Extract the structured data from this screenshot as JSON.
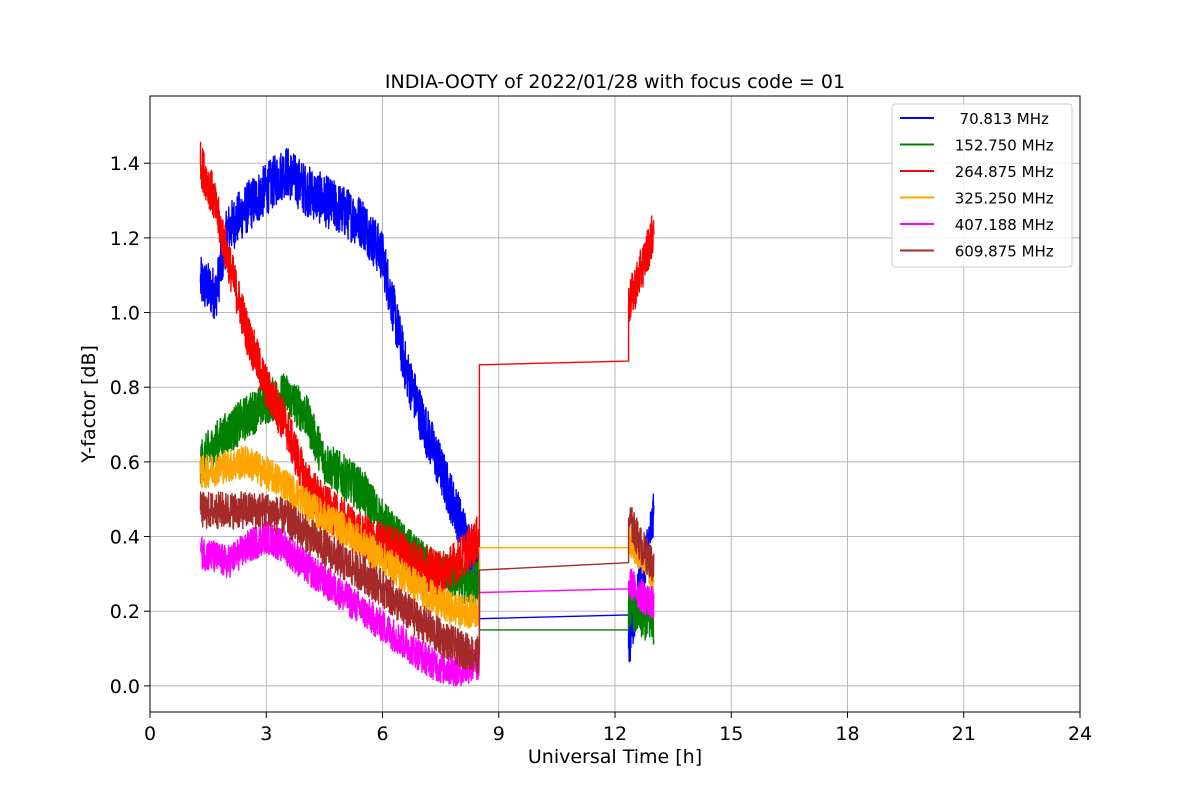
{
  "chart_data": {
    "type": "line",
    "title": "INDIA-OOTY of 2022/01/28 with focus code = 01",
    "xlabel": "Universal Time [h]",
    "ylabel": "Y-factor [dB]",
    "xlim": [
      0,
      24
    ],
    "ylim": [
      -0.07,
      1.58
    ],
    "xticks": [
      0,
      3,
      6,
      9,
      12,
      15,
      18,
      21,
      24
    ],
    "yticks": [
      0.0,
      0.2,
      0.4,
      0.6,
      0.8,
      1.0,
      1.2,
      1.4
    ],
    "grid": true,
    "legend_position": "top-right",
    "series": [
      {
        "name": "  70.813 MHz",
        "color": "#0000ff",
        "noise": 0.07,
        "points": [
          [
            1.3,
            1.08
          ],
          [
            1.7,
            1.05
          ],
          [
            2.0,
            1.22
          ],
          [
            2.5,
            1.28
          ],
          [
            3.0,
            1.33
          ],
          [
            3.5,
            1.38
          ],
          [
            4.0,
            1.33
          ],
          [
            4.5,
            1.3
          ],
          [
            5.0,
            1.27
          ],
          [
            5.5,
            1.24
          ],
          [
            6.0,
            1.15
          ],
          [
            6.3,
            1.0
          ],
          [
            6.6,
            0.85
          ],
          [
            7.0,
            0.72
          ],
          [
            7.5,
            0.58
          ],
          [
            8.0,
            0.44
          ],
          [
            8.5,
            0.3
          ],
          [
            8.5,
            0.18
          ],
          [
            12.35,
            0.19
          ],
          [
            12.35,
            0.1
          ],
          [
            12.7,
            0.3
          ],
          [
            13.0,
            0.45
          ]
        ]
      },
      {
        "name": " 152.750 MHz",
        "color": "#008000",
        "noise": 0.06,
        "points": [
          [
            1.3,
            0.6
          ],
          [
            1.8,
            0.66
          ],
          [
            2.5,
            0.72
          ],
          [
            3.0,
            0.76
          ],
          [
            3.5,
            0.78
          ],
          [
            4.0,
            0.73
          ],
          [
            4.5,
            0.6
          ],
          [
            5.0,
            0.56
          ],
          [
            5.5,
            0.52
          ],
          [
            6.0,
            0.44
          ],
          [
            6.5,
            0.38
          ],
          [
            7.0,
            0.33
          ],
          [
            7.5,
            0.3
          ],
          [
            8.0,
            0.28
          ],
          [
            8.5,
            0.28
          ],
          [
            8.5,
            0.15
          ],
          [
            12.35,
            0.15
          ],
          [
            12.35,
            0.22
          ],
          [
            12.7,
            0.18
          ],
          [
            13.0,
            0.17
          ]
        ]
      },
      {
        "name": " 264.875 MHz",
        "color": "#ff0000",
        "noise": 0.06,
        "points": [
          [
            1.3,
            1.4
          ],
          [
            1.6,
            1.32
          ],
          [
            2.0,
            1.15
          ],
          [
            2.5,
            0.95
          ],
          [
            3.0,
            0.8
          ],
          [
            3.5,
            0.7
          ],
          [
            4.0,
            0.55
          ],
          [
            4.5,
            0.48
          ],
          [
            5.0,
            0.44
          ],
          [
            5.5,
            0.4
          ],
          [
            6.0,
            0.38
          ],
          [
            6.5,
            0.36
          ],
          [
            7.0,
            0.32
          ],
          [
            7.5,
            0.3
          ],
          [
            8.0,
            0.34
          ],
          [
            8.5,
            0.4
          ],
          [
            8.5,
            0.86
          ],
          [
            12.35,
            0.87
          ],
          [
            12.35,
            1.02
          ],
          [
            12.7,
            1.12
          ],
          [
            13.0,
            1.22
          ]
        ]
      },
      {
        "name": " 325.250 MHz",
        "color": "#ffa500",
        "noise": 0.045,
        "points": [
          [
            1.3,
            0.57
          ],
          [
            2.0,
            0.59
          ],
          [
            2.5,
            0.6
          ],
          [
            3.0,
            0.57
          ],
          [
            3.5,
            0.54
          ],
          [
            4.0,
            0.49
          ],
          [
            4.5,
            0.45
          ],
          [
            5.0,
            0.42
          ],
          [
            5.5,
            0.38
          ],
          [
            6.0,
            0.34
          ],
          [
            6.5,
            0.3
          ],
          [
            7.0,
            0.26
          ],
          [
            7.5,
            0.22
          ],
          [
            8.0,
            0.2
          ],
          [
            8.5,
            0.2
          ],
          [
            8.5,
            0.37
          ],
          [
            12.35,
            0.37
          ],
          [
            12.35,
            0.4
          ],
          [
            12.7,
            0.34
          ],
          [
            13.0,
            0.3
          ]
        ]
      },
      {
        "name": " 407.188 MHz",
        "color": "#ff00ff",
        "noise": 0.045,
        "points": [
          [
            1.3,
            0.36
          ],
          [
            2.0,
            0.33
          ],
          [
            2.5,
            0.37
          ],
          [
            3.0,
            0.4
          ],
          [
            3.5,
            0.37
          ],
          [
            4.0,
            0.32
          ],
          [
            4.5,
            0.28
          ],
          [
            5.0,
            0.24
          ],
          [
            5.5,
            0.2
          ],
          [
            6.0,
            0.16
          ],
          [
            6.5,
            0.12
          ],
          [
            7.0,
            0.08
          ],
          [
            7.5,
            0.05
          ],
          [
            8.0,
            0.04
          ],
          [
            8.5,
            0.06
          ],
          [
            8.5,
            0.25
          ],
          [
            12.35,
            0.26
          ],
          [
            12.35,
            0.28
          ],
          [
            12.7,
            0.24
          ],
          [
            13.0,
            0.22
          ]
        ]
      },
      {
        "name": " 609.875 MHz",
        "color": "#a52a2a",
        "noise": 0.05,
        "points": [
          [
            1.3,
            0.47
          ],
          [
            2.0,
            0.47
          ],
          [
            2.5,
            0.47
          ],
          [
            3.0,
            0.47
          ],
          [
            3.5,
            0.45
          ],
          [
            4.0,
            0.41
          ],
          [
            4.5,
            0.37
          ],
          [
            5.0,
            0.33
          ],
          [
            5.5,
            0.3
          ],
          [
            6.0,
            0.26
          ],
          [
            6.5,
            0.21
          ],
          [
            7.0,
            0.17
          ],
          [
            7.5,
            0.13
          ],
          [
            8.0,
            0.1
          ],
          [
            8.5,
            0.08
          ],
          [
            8.5,
            0.31
          ],
          [
            12.35,
            0.33
          ],
          [
            12.35,
            0.45
          ],
          [
            12.7,
            0.37
          ],
          [
            13.0,
            0.32
          ]
        ]
      }
    ]
  }
}
